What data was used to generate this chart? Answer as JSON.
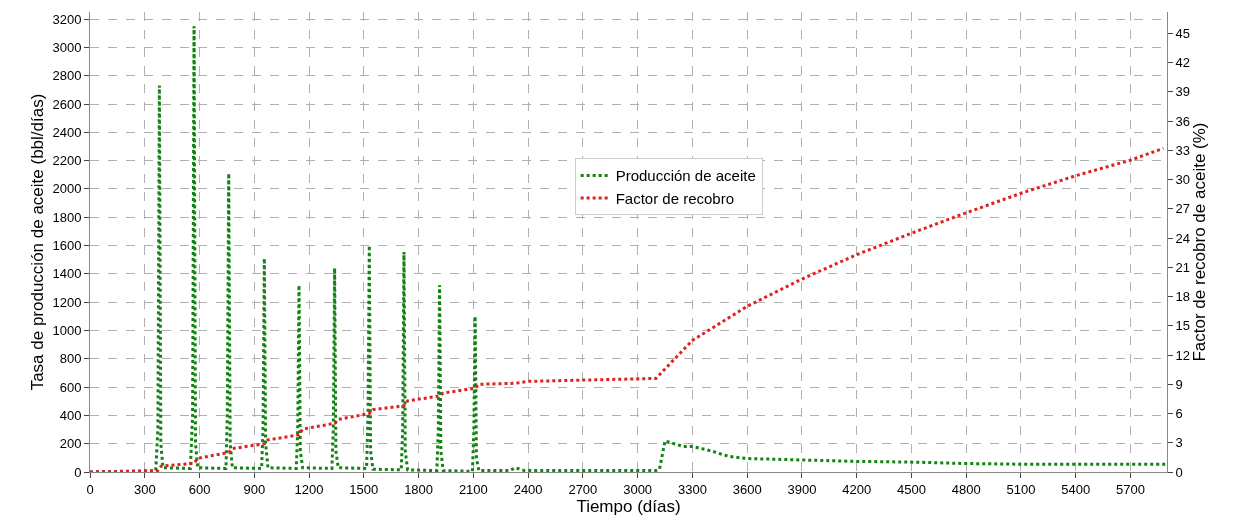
{
  "chart_data": {
    "type": "line",
    "xlabel": "Tiempo (días)",
    "ylabel": "Tasa de producción de aceite (bbl/días)",
    "y2label": "Factor de recobro de aceite (%)",
    "xlim": [
      0,
      5900
    ],
    "xticks": [
      0,
      300,
      600,
      900,
      1200,
      1500,
      1800,
      2100,
      2400,
      2700,
      3000,
      3300,
      3600,
      3900,
      4200,
      4500,
      4800,
      5100,
      5400,
      5700
    ],
    "ylim": [
      0,
      3250
    ],
    "yticks": [
      0,
      200,
      400,
      600,
      800,
      1000,
      1200,
      1400,
      1600,
      1800,
      2000,
      2200,
      2400,
      2600,
      2800,
      3000,
      3200
    ],
    "y2lim": [
      0,
      47.2
    ],
    "y2ticks": [
      0,
      3,
      6,
      9,
      12,
      15,
      18,
      21,
      24,
      27,
      30,
      33,
      36,
      39,
      42,
      45
    ],
    "grid": true,
    "legend": "center",
    "line_style": "dotted",
    "series": [
      {
        "name": "Producción de aceite",
        "color": "#128212",
        "x": [
          0,
          360,
          372,
          380,
          388,
          400,
          550,
          562,
          570,
          578,
          590,
          745,
          752,
          760,
          768,
          780,
          940,
          948,
          955,
          962,
          975,
          1130,
          1138,
          1145,
          1152,
          1165,
          1325,
          1333,
          1340,
          1347,
          1360,
          1515,
          1523,
          1530,
          1537,
          1550,
          1705,
          1713,
          1720,
          1727,
          1740,
          1900,
          1908,
          1915,
          1922,
          1935,
          2095,
          2103,
          2110,
          2117,
          2130,
          2300,
          2330,
          2380,
          3100,
          3120,
          3150,
          3250,
          3300,
          3400,
          3500,
          3600,
          3900,
          4200,
          4500,
          4800,
          5100,
          5400,
          5900
        ],
        "values": [
          0,
          10,
          300,
          2730,
          200,
          30,
          25,
          400,
          3150,
          200,
          30,
          25,
          400,
          2110,
          200,
          30,
          25,
          300,
          1510,
          200,
          30,
          25,
          300,
          1320,
          150,
          30,
          25,
          300,
          1440,
          150,
          30,
          25,
          400,
          1600,
          150,
          20,
          15,
          300,
          1555,
          150,
          15,
          10,
          300,
          1320,
          150,
          10,
          5,
          300,
          1100,
          100,
          10,
          10,
          30,
          10,
          10,
          20,
          220,
          180,
          180,
          150,
          110,
          95,
          85,
          75,
          70,
          60,
          55,
          55,
          55
        ]
      },
      {
        "name": "Factor de recobro",
        "color": "#e02020",
        "axis": "y2",
        "x": [
          0,
          370,
          390,
          570,
          590,
          760,
          780,
          955,
          975,
          1145,
          1165,
          1340,
          1360,
          1530,
          1550,
          1720,
          1740,
          1915,
          1935,
          2110,
          2130,
          2330,
          2400,
          3100,
          3300,
          3600,
          3900,
          4200,
          4500,
          4800,
          5100,
          5400,
          5700,
          5880
        ],
        "values": [
          0,
          0.1,
          0.6,
          0.9,
          1.4,
          2.0,
          2.4,
          2.9,
          3.3,
          3.8,
          4.4,
          5.0,
          5.4,
          6.0,
          6.4,
          6.8,
          7.3,
          7.8,
          8.1,
          8.6,
          9.0,
          9.1,
          9.3,
          9.6,
          13.5,
          17.0,
          19.8,
          22.3,
          24.5,
          26.6,
          28.6,
          30.4,
          32.0,
          33.2
        ]
      }
    ]
  }
}
